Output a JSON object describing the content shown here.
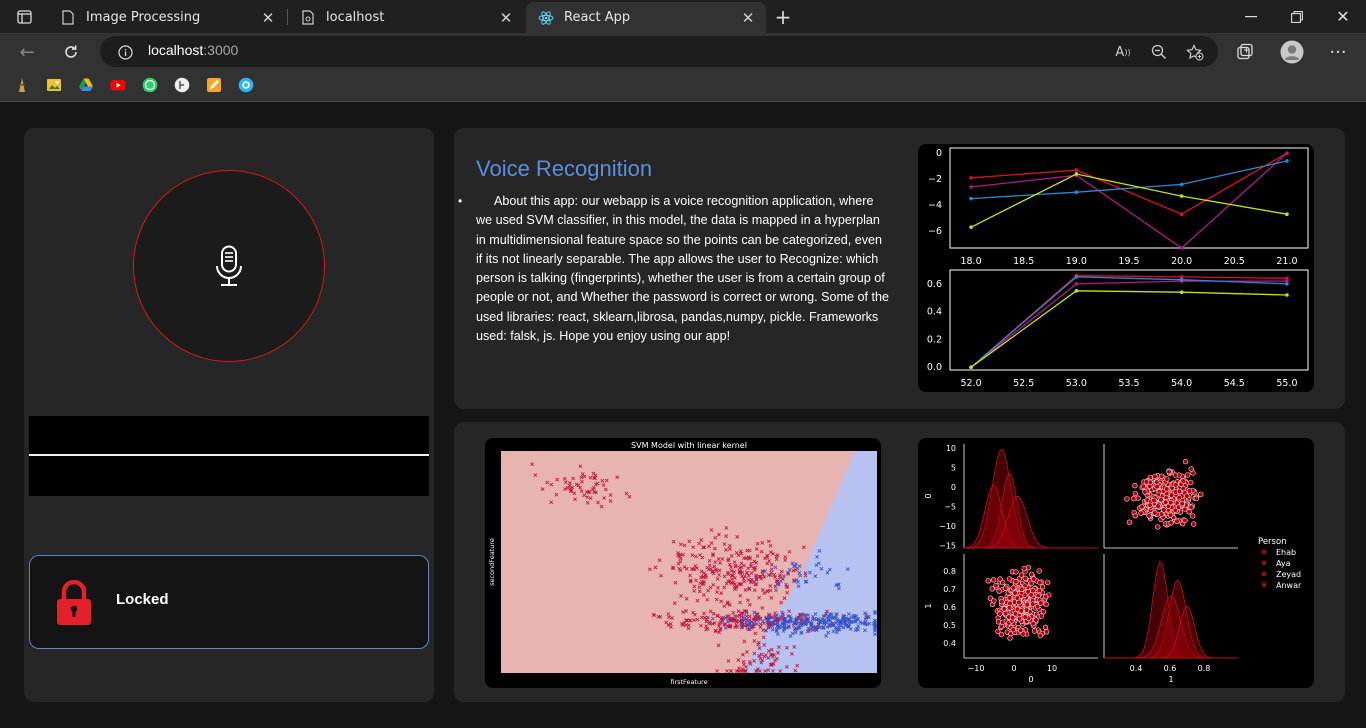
{
  "browser": {
    "tabs": [
      {
        "title": "Image Processing",
        "icon": "page-icon"
      },
      {
        "title": "localhost",
        "icon": "page-icon"
      },
      {
        "title": "React App",
        "icon": "react-icon"
      }
    ],
    "url_host": "localhost",
    "url_port": ":3000",
    "bookmarks": [
      "tower-icon",
      "photo-icon",
      "drive-icon",
      "youtube-icon",
      "whatsapp-icon",
      "script-icon",
      "pencil-icon",
      "circle-app-icon"
    ]
  },
  "app": {
    "info": {
      "title": "Voice Recognition",
      "body": "About this app: our webapp is a voice recognition application, where we used SVM classifier, in this model, the data is mapped in a hyperplan in multidimensional feature space so the points can be categorized, even if its not linearly separable. The app allows the user to Recognize: which person is talking (fingerprints), whether the user is from a certain group of people or not, and Whether the password is correct or wrong. Some of the used libraries: react, sklearn,librosa, pandas,numpy, pickle. Frameworks used: falsk, js. Hope you enjoy using our app!"
    },
    "lock": {
      "status": "Locked"
    },
    "colors": {
      "accent": "#5b8fe0",
      "mic_ring": "#d21a1a",
      "lock": "#e3212b"
    }
  },
  "chart_data": [
    {
      "type": "line",
      "x": [
        18,
        19,
        20,
        21
      ],
      "xticks": [
        "18.0",
        "18.5",
        "19.0",
        "19.5",
        "20.0",
        "20.5",
        "21.0"
      ],
      "yticks": [
        "0",
        "−2",
        "−4",
        "−6"
      ],
      "ylim": [
        -7.3,
        0.4
      ],
      "xlim": [
        17.8,
        21.2
      ],
      "series": [
        {
          "color": "#e0102a",
          "values": [
            -1.9,
            -1.3,
            -4.7,
            0.0
          ]
        },
        {
          "color": "#b01a8a",
          "values": [
            -2.6,
            -1.7,
            -7.3,
            0.0
          ]
        },
        {
          "color": "#2a8ad0",
          "values": [
            -3.5,
            -3.0,
            -2.4,
            -0.6
          ]
        },
        {
          "color": "#c8e010",
          "values": [
            -5.7,
            -1.6,
            -3.3,
            -4.7
          ]
        }
      ]
    },
    {
      "type": "line",
      "x": [
        52,
        53,
        54,
        55
      ],
      "xticks": [
        "52.0",
        "52.5",
        "53.0",
        "53.5",
        "54.0",
        "54.5",
        "55.0"
      ],
      "yticks": [
        "0.6",
        "0.4",
        "0.2",
        "0.0"
      ],
      "ylim": [
        -0.02,
        0.7
      ],
      "xlim": [
        51.8,
        55.2
      ],
      "series": [
        {
          "color": "#e0102a",
          "values": [
            0.0,
            0.66,
            0.65,
            0.64
          ]
        },
        {
          "color": "#b01a8a",
          "values": [
            0.0,
            0.6,
            0.62,
            0.62
          ]
        },
        {
          "color": "#2a8ad0",
          "values": [
            0.0,
            0.65,
            0.63,
            0.6
          ]
        },
        {
          "color": "#c8e010",
          "values": [
            0.0,
            0.55,
            0.54,
            0.52
          ]
        }
      ]
    },
    {
      "type": "scatter",
      "title": "SVM Model with linear kernel",
      "xlabel": "firstFeature",
      "ylabel": "secondFeature",
      "classes": [
        {
          "color": "#c0103a",
          "marker": "x"
        },
        {
          "color": "#3050c8",
          "marker": "x"
        }
      ],
      "regions": [
        {
          "color": "#e8b4b2"
        },
        {
          "color": "#b8c2f0"
        }
      ]
    },
    {
      "type": "scatter",
      "legend_title": "Person",
      "legend": [
        "Ehab",
        "Aya",
        "Zeyad",
        "Anwar"
      ],
      "xlabel_left": "0",
      "xlabel_right": "1",
      "ylabel_top": "0",
      "ylabel_bottom": "1",
      "top_yticks": [
        "10",
        "5",
        "0",
        "−5",
        "−10",
        "−15"
      ],
      "bottom_yticks": [
        "0.8",
        "0.7",
        "0.6",
        "0.5",
        "0.4"
      ],
      "left_xticks": [
        "−10",
        "0",
        "10"
      ],
      "right_xticks": [
        "0.4",
        "0.6",
        "0.8"
      ]
    }
  ]
}
